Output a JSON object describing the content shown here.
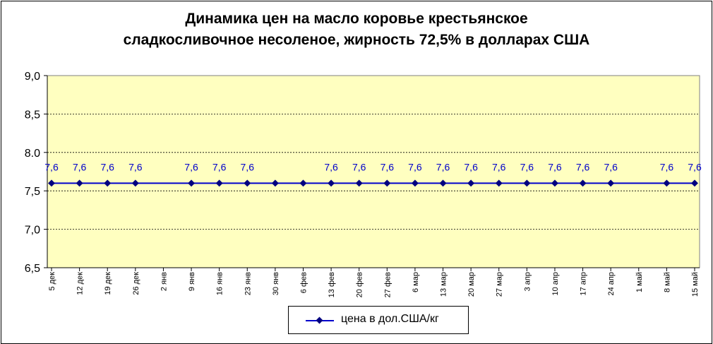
{
  "chart_data": {
    "type": "line",
    "title_line1": "Динамика цен на масло коровье крестьянское",
    "title_line2": "сладкосливочное несоленое, жирность  72,5%  в долларах США",
    "categories": [
      "5 дек",
      "12 дек",
      "19 дек",
      "26 дек",
      "2 янв",
      "9 янв",
      "16 янв",
      "23 янв",
      "30 янв",
      "6 фев",
      "13 фев",
      "20 фев",
      "27 фев",
      "6 мар",
      "13 мар",
      "20 мар",
      "27 мар",
      "3 апр",
      "10 апр",
      "17 апр",
      "24 апр",
      "1 май",
      "8 май",
      "15 май"
    ],
    "series": [
      {
        "name": "цена в дол.США/кг",
        "values": [
          7.6,
          7.6,
          7.6,
          7.6,
          null,
          7.6,
          7.6,
          7.6,
          7.6,
          7.6,
          7.6,
          7.6,
          7.6,
          7.6,
          7.6,
          7.6,
          7.6,
          7.6,
          7.6,
          7.6,
          7.6,
          null,
          7.6,
          7.6
        ],
        "data_labels": [
          "7,6",
          "7,6",
          "7,6",
          "7,6",
          "",
          "7,6",
          "7,6",
          "7,6",
          "",
          "",
          "7,6",
          "7,6",
          "7,6",
          "7,6",
          "7,6",
          "7,6",
          "7,6",
          "7,6",
          "7,6",
          "7,6",
          "7,6",
          "",
          "7,6",
          "7,6"
        ]
      }
    ],
    "ylim": [
      6.5,
      9.0
    ],
    "yticks": [
      6.5,
      7.0,
      7.5,
      8.0,
      8.5,
      9.0
    ],
    "ytick_labels": [
      "6,5",
      "7,0",
      "7,5",
      "8.0",
      "8,5",
      "9,0"
    ],
    "grid": true,
    "legend_position": "bottom-center",
    "colors": {
      "plot_background": "#ffffc0",
      "series_line": "#0000cc",
      "series_marker": "#000080",
      "data_label": "#0000cc",
      "grid": "#000000"
    }
  }
}
